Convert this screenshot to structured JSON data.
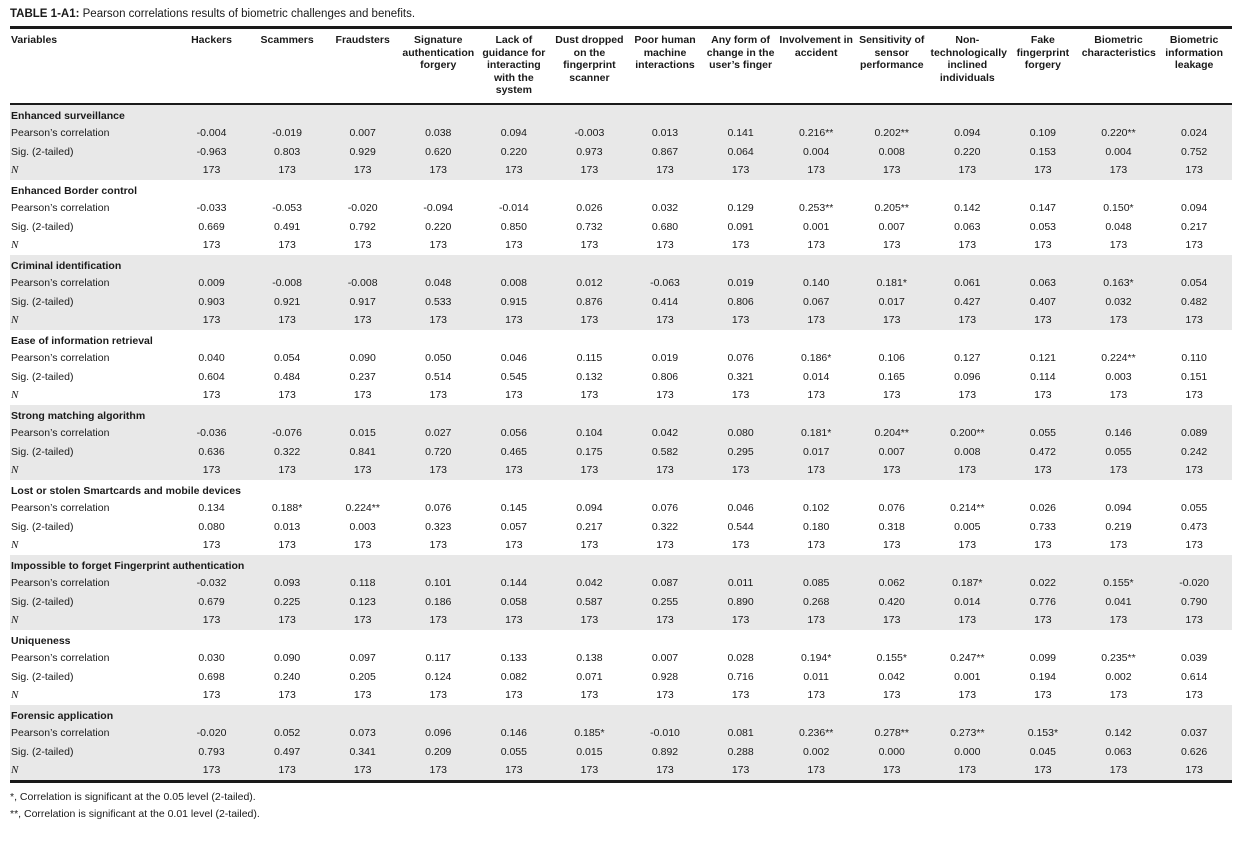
{
  "page": {
    "background_color": "#ffffff",
    "text_color": "#1a1a1a",
    "group_shade_color": "#e8e8e8",
    "rule_color": "#1a1a1a"
  },
  "title": {
    "label": "TABLE 1-A1:",
    "text": " Pearson correlations results of biometric challenges and benefits."
  },
  "table": {
    "first_column_header": "Variables",
    "columns": [
      "Hackers",
      "Scammers",
      "Fraudsters",
      "Signature authentication forgery",
      "Lack of guidance for interacting with the system",
      "Dust dropped on the fingerprint scanner",
      "Poor human machine interactions",
      "Any form of change in the user’s finger",
      "Involvement in accident",
      "Sensitivity of sensor performance",
      "Non-technologically inclined individuals",
      "Fake fingerprint forgery",
      "Biometric characteristics",
      "Biometric information leakage"
    ],
    "row_labels": {
      "pearson": "Pearson’s correlation",
      "sig": "Sig. (2-tailed)",
      "n": "N"
    },
    "groups": [
      {
        "name": "Enhanced surveillance",
        "pearson": [
          "-0.004",
          "-0.019",
          "0.007",
          "0.038",
          "0.094",
          "-0.003",
          "0.013",
          "0.141",
          "0.216**",
          "0.202**",
          "0.094",
          "0.109",
          "0.220**",
          "0.024"
        ],
        "sig": [
          "-0.963",
          "0.803",
          "0.929",
          "0.620",
          "0.220",
          "0.973",
          "0.867",
          "0.064",
          "0.004",
          "0.008",
          "0.220",
          "0.153",
          "0.004",
          "0.752"
        ],
        "n": "173"
      },
      {
        "name": "Enhanced Border control",
        "pearson": [
          "-0.033",
          "-0.053",
          "-0.020",
          "-0.094",
          "-0.014",
          "0.026",
          "0.032",
          "0.129",
          "0.253**",
          "0.205**",
          "0.142",
          "0.147",
          "0.150*",
          "0.094"
        ],
        "sig": [
          "0.669",
          "0.491",
          "0.792",
          "0.220",
          "0.850",
          "0.732",
          "0.680",
          "0.091",
          "0.001",
          "0.007",
          "0.063",
          "0.053",
          "0.048",
          "0.217"
        ],
        "n": "173"
      },
      {
        "name": "Criminal identification",
        "pearson": [
          "0.009",
          "-0.008",
          "-0.008",
          "0.048",
          "0.008",
          "0.012",
          "-0.063",
          "0.019",
          "0.140",
          "0.181*",
          "0.061",
          "0.063",
          "0.163*",
          "0.054"
        ],
        "sig": [
          "0.903",
          "0.921",
          "0.917",
          "0.533",
          "0.915",
          "0.876",
          "0.414",
          "0.806",
          "0.067",
          "0.017",
          "0.427",
          "0.407",
          "0.032",
          "0.482"
        ],
        "n": "173"
      },
      {
        "name": "Ease of information retrieval",
        "pearson": [
          "0.040",
          "0.054",
          "0.090",
          "0.050",
          "0.046",
          "0.115",
          "0.019",
          "0.076",
          "0.186*",
          "0.106",
          "0.127",
          "0.121",
          "0.224**",
          "0.110"
        ],
        "sig": [
          "0.604",
          "0.484",
          "0.237",
          "0.514",
          "0.545",
          "0.132",
          "0.806",
          "0.321",
          "0.014",
          "0.165",
          "0.096",
          "0.114",
          "0.003",
          "0.151"
        ],
        "n": "173"
      },
      {
        "name": "Strong matching algorithm",
        "pearson": [
          "-0.036",
          "-0.076",
          "0.015",
          "0.027",
          "0.056",
          "0.104",
          "0.042",
          "0.080",
          "0.181*",
          "0.204**",
          "0.200**",
          "0.055",
          "0.146",
          "0.089"
        ],
        "sig": [
          "0.636",
          "0.322",
          "0.841",
          "0.720",
          "0.465",
          "0.175",
          "0.582",
          "0.295",
          "0.017",
          "0.007",
          "0.008",
          "0.472",
          "0.055",
          "0.242"
        ],
        "n": "173"
      },
      {
        "name": "Lost or stolen Smartcards and mobile devices",
        "pearson": [
          "0.134",
          "0.188*",
          "0.224**",
          "0.076",
          "0.145",
          "0.094",
          "0.076",
          "0.046",
          "0.102",
          "0.076",
          "0.214**",
          "0.026",
          "0.094",
          "0.055"
        ],
        "sig": [
          "0.080",
          "0.013",
          "0.003",
          "0.323",
          "0.057",
          "0.217",
          "0.322",
          "0.544",
          "0.180",
          "0.318",
          "0.005",
          "0.733",
          "0.219",
          "0.473"
        ],
        "n": "173"
      },
      {
        "name": "Impossible to forget Fingerprint authentication",
        "pearson": [
          "-0.032",
          "0.093",
          "0.118",
          "0.101",
          "0.144",
          "0.042",
          "0.087",
          "0.011",
          "0.085",
          "0.062",
          "0.187*",
          "0.022",
          "0.155*",
          "-0.020"
        ],
        "sig": [
          "0.679",
          "0.225",
          "0.123",
          "0.186",
          "0.058",
          "0.587",
          "0.255",
          "0.890",
          "0.268",
          "0.420",
          "0.014",
          "0.776",
          "0.041",
          "0.790"
        ],
        "n": "173"
      },
      {
        "name": "Uniqueness",
        "pearson": [
          "0.030",
          "0.090",
          "0.097",
          "0.117",
          "0.133",
          "0.138",
          "0.007",
          "0.028",
          "0.194*",
          "0.155*",
          "0.247**",
          "0.099",
          "0.235**",
          "0.039"
        ],
        "sig": [
          "0.698",
          "0.240",
          "0.205",
          "0.124",
          "0.082",
          "0.071",
          "0.928",
          "0.716",
          "0.011",
          "0.042",
          "0.001",
          "0.194",
          "0.002",
          "0.614"
        ],
        "n": "173"
      },
      {
        "name": "Forensic application",
        "pearson": [
          "-0.020",
          "0.052",
          "0.073",
          "0.096",
          "0.146",
          "0.185*",
          "-0.010",
          "0.081",
          "0.236**",
          "0.278**",
          "0.273**",
          "0.153*",
          "0.142",
          "0.037"
        ],
        "sig": [
          "0.793",
          "0.497",
          "0.341",
          "0.209",
          "0.055",
          "0.015",
          "0.892",
          "0.288",
          "0.002",
          "0.000",
          "0.000",
          "0.045",
          "0.063",
          "0.626"
        ],
        "n": "173"
      }
    ]
  },
  "footnotes": [
    "*, Correlation is significant at the 0.05 level (2-tailed).",
    "**, Correlation is significant at the 0.01 level (2-tailed)."
  ]
}
